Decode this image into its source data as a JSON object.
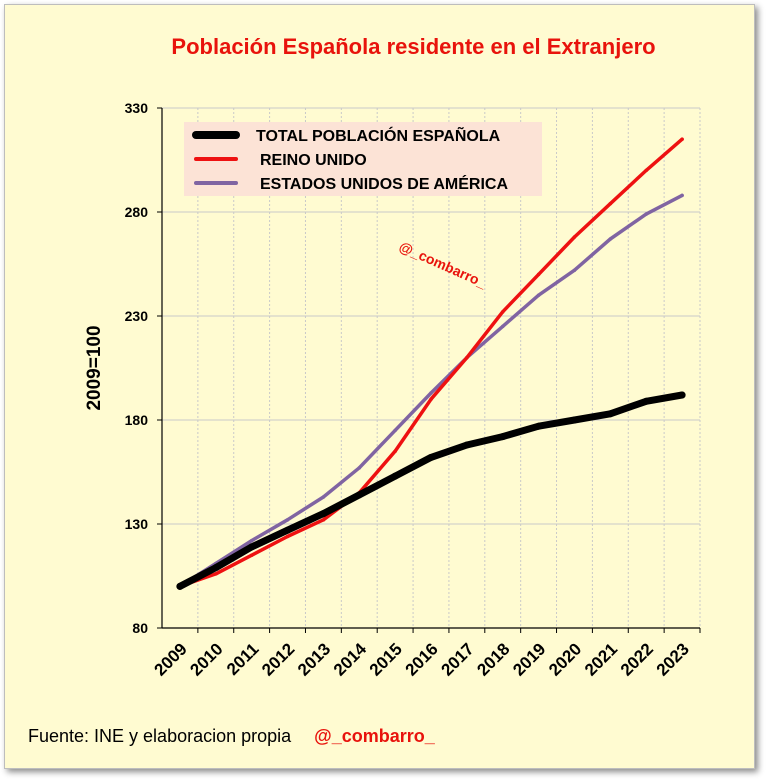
{
  "chart_data": {
    "type": "line",
    "title": "Población Española residente en el Extranjero",
    "xlabel": "",
    "ylabel": "2009=100",
    "categories": [
      "2009",
      "2010",
      "2011",
      "2012",
      "2013",
      "2014",
      "2015",
      "2016",
      "2017",
      "2018",
      "2019",
      "2020",
      "2021",
      "2022",
      "2023"
    ],
    "ylim": [
      80,
      330
    ],
    "yticks": [
      80,
      130,
      180,
      230,
      280,
      330
    ],
    "grid": true,
    "legend_position": "top-left",
    "series": [
      {
        "name": "TOTAL POBLACIÓN ESPAÑOLA",
        "color": "#000000",
        "values": [
          100,
          109,
          119,
          127,
          135,
          144,
          153,
          162,
          168,
          172,
          177,
          180,
          183,
          189,
          192
        ]
      },
      {
        "name": "REINO UNIDO",
        "color": "#ee1111",
        "values": [
          100,
          106,
          115,
          124,
          132,
          145,
          165,
          190,
          210,
          232,
          250,
          268,
          284,
          300,
          315
        ]
      },
      {
        "name": "ESTADOS UNIDOS DE AMÉRICA",
        "color": "#8064a2",
        "values": [
          100,
          111,
          122,
          132,
          143,
          157,
          175,
          193,
          210,
          225,
          240,
          252,
          267,
          279,
          288
        ]
      }
    ],
    "watermark": "@_combarro_"
  },
  "footer": {
    "source": "Fuente: INE y elaboracion propia",
    "handle": "@_combarro_"
  }
}
